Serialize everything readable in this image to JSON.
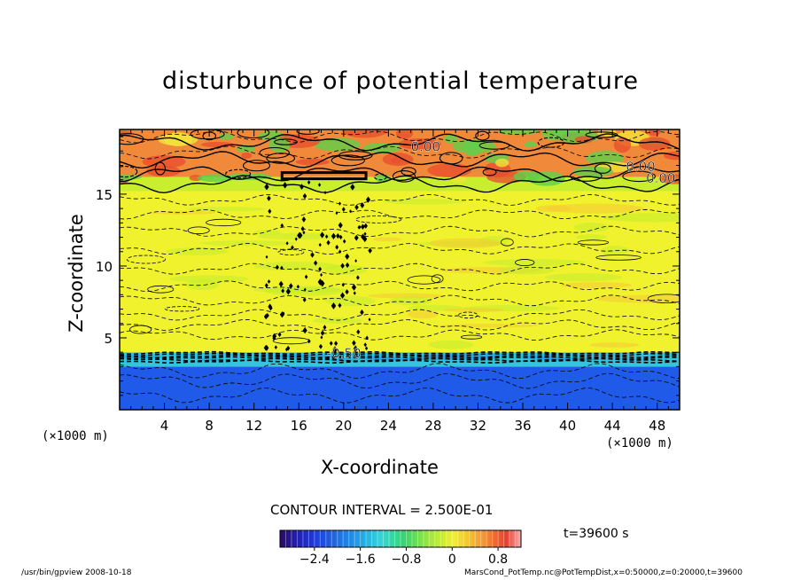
{
  "chart_data": {
    "type": "heatmap",
    "title": "disturbunce of potential temperature",
    "xlabel": "X-coordinate",
    "ylabel": "Z-coordinate",
    "x_unit": "(×1000 m)",
    "z_unit": "(×1000 m)",
    "xlim": [
      0,
      50
    ],
    "ylim": [
      0,
      19.5
    ],
    "x_ticks": [
      4,
      8,
      12,
      16,
      20,
      24,
      28,
      32,
      36,
      40,
      44,
      48
    ],
    "y_ticks": [
      5,
      10,
      15
    ],
    "contour_interval": "CONTOUR INTERVAL = 2.500E-01",
    "time": "t=39600 s",
    "colorbar": {
      "range": [
        -3.0,
        1.2
      ],
      "tick_labels": [
        "-2.4",
        "-1.6",
        "-0.8",
        "0",
        "0.8"
      ],
      "tick_values": [
        -2.4,
        -1.6,
        -0.8,
        0,
        0.8
      ]
    },
    "layers": [
      {
        "z_range": [
          0,
          3.0
        ],
        "value": -2.6,
        "color": "#1f5ae8"
      },
      {
        "z_range": [
          3.0,
          4.0
        ],
        "value": -1.4,
        "color": "#35c4dc"
      },
      {
        "z_range": [
          4.0,
          15.2
        ],
        "value": 0.1,
        "color": "#f0f22e"
      },
      {
        "z_range": [
          15.2,
          16.2
        ],
        "value": 0.3,
        "color": "#c8ee2e"
      },
      {
        "z_range": [
          16.2,
          19.5
        ],
        "value": 0.8,
        "color": "#f08a3a"
      }
    ],
    "contour_labels": [
      "0.00",
      "0.00",
      "0.00",
      "-0.50"
    ]
  },
  "colors": {
    "top_layer": "#ef8c3c",
    "top_layer_hot": "#e8502e",
    "top_layer_green": "#5fcf4a",
    "mid_yellow": "#f3f431",
    "mid_lime": "#c2ec2c",
    "mid_orange": "#f5c835",
    "bottom_cyan": "#35c4dc",
    "bottom_blue": "#1c55e6"
  },
  "footer": {
    "left": "/usr/bin/gpview   2008-10-18",
    "right": "MarsCond_PotTemp.nc@PotTempDist,x=0:50000,z=0:20000,t=39600"
  }
}
